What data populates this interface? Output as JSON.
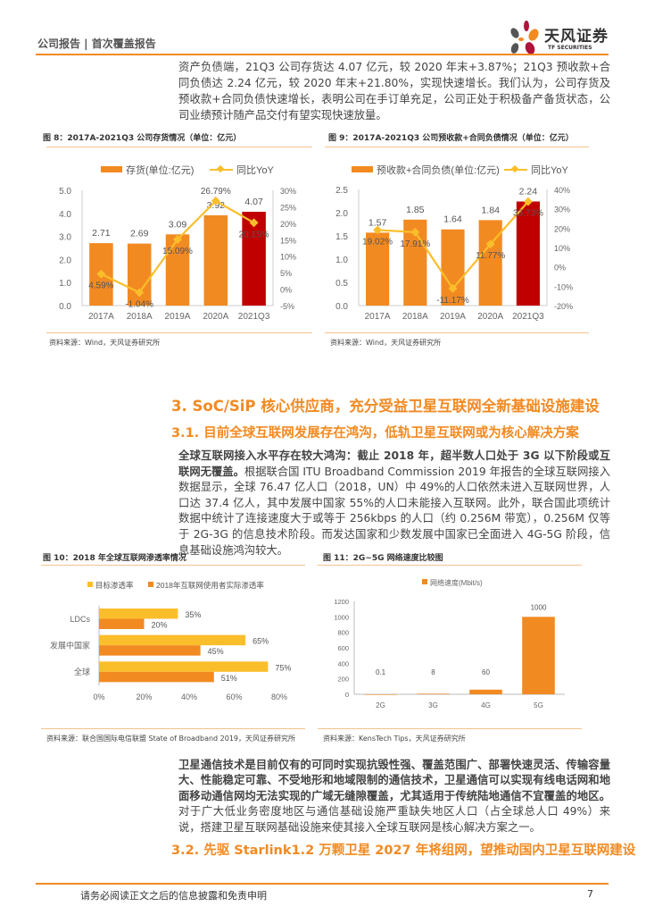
{
  "header": {
    "left": "公司报告 | 首次覆盖报告",
    "brand_cn": "天风证券",
    "brand_en": "TF SECURITIES"
  },
  "intro": "资产负债端，21Q3 公司存货达 4.07 亿元，较 2020 年末+3.87%；21Q3 预收款+合同负债达 2.24 亿元，较 2020 年末+21.80%，实现快速增长。我们认为，公司存货及预收款+合同负债快速增长，表明公司在手订单充足，公司正处于积极备产备货状态，公司业绩预计随产品交付有望实现快速放量。",
  "fig8": {
    "title": "图 8：2017A-2021Q3 公司存货情况（单位：亿元）",
    "source": "资料来源：Wind，天风证券研究所"
  },
  "fig9": {
    "title": "图 9：2017A-2021Q3 公司预收款+合同负债情况（单位：亿元）",
    "source": "资料来源：Wind，天风证券研究所"
  },
  "section3": "3. SoC/SiP 核心供应商，充分受益卫星互联网全新基础设施建设",
  "section31": "3.1. 目前全球互联网发展存在鸿沟，低轨卫星互联网或为核心解决方案",
  "para2_bold": "全球互联网接入水平存在较大鸿沟：截止 2018 年，超半数人口处于 3G 以下阶段或互联网无覆盖。",
  "para2": "根据联合国 ITU Broadband Commission 2019 年报告的全球互联网接入数据显示，全球 76.47 亿人口（2018，UN）中 49%的人口依然未进入互联网世界，人口达 37.4 亿人，其中发展中国家 55%的人口未能接入互联网。此外，联合国此项统计数据中统计了连接速度大于或等于 256kbps 的人口（约 0.256M 带宽），0.256M 仅等于 2G-3G 的信息技术阶段。而发达国家和少数发展中国家已全面进入 4G-5G 阶段，信息基础设施鸿沟较大。",
  "fig10": {
    "title": "图 10：2018 年全球互联网渗透率情况",
    "source": "资料来源：联合国国际电信联盟 State of Broadband 2019，天风证券研究所"
  },
  "fig11": {
    "title": "图 11：2G~5G 网络速度比较图",
    "source": "资料来源：KensTech Tips，天风证券研究所"
  },
  "para3_bold": "卫星通信技术是目前仅有的可同时实现抗毁性强、覆盖范围广、部署快速灵活、传输容量大、性能稳定可靠、不受地形和地域限制的通信技术，卫星通信可以实现有线电话网和地面移动通信网均无法实现的广域无缝隙覆盖，尤其适用于传统陆地通信不宜覆盖的地区。",
  "para3": "对于广大低业务密度地区与通信基础设施严重缺失地区人口（占全球总人口 49%）来说，搭建卫星互联网基础设施来使其接入全球互联网是核心解决方案之一。",
  "section32": "3.2. 先驱 Starlink1.2 万颗卫星 2027 年将组网，望推动国内卫星互联网建设",
  "footer": {
    "disclaimer": "请务必阅读正文之后的信息披露和免责申明",
    "page": "7"
  },
  "colors": {
    "accent": "#F28A22",
    "highlight": "#C00000",
    "line": "#FBBE2B"
  },
  "chart_data": [
    {
      "type": "bar+line",
      "categories": [
        "2017A",
        "2018A",
        "2019A",
        "2020A",
        "2021Q3"
      ],
      "series": [
        {
          "name": "存货(单位:亿元)",
          "values": [
            2.71,
            2.69,
            3.09,
            3.92,
            4.07
          ],
          "labels": [
            "2.71",
            "2.69",
            "3.09",
            "3.92",
            "4.07"
          ]
        },
        {
          "name": "同比YoY",
          "values": [
            4.59,
            -1.04,
            15.09,
            26.79,
            20.15
          ],
          "labels": [
            "4.59%",
            "-1.04%",
            "15.09%",
            "26.79%",
            "20.15%"
          ]
        }
      ],
      "ylim": [
        0,
        5
      ],
      "yticks": [
        "0.0",
        "1.0",
        "2.0",
        "3.0",
        "4.0",
        "5.0"
      ],
      "y2lim": [
        -5,
        30
      ],
      "y2ticks": [
        "-5%",
        "0%",
        "5%",
        "10%",
        "15%",
        "20%",
        "25%",
        "30%"
      ],
      "legend": "top"
    },
    {
      "type": "bar+line",
      "categories": [
        "2017A",
        "2018A",
        "2019A",
        "2020A",
        "2021Q3"
      ],
      "series": [
        {
          "name": "预收款+合同负债(单位:亿元)",
          "values": [
            1.57,
            1.85,
            1.64,
            1.84,
            2.24
          ],
          "labels": [
            "1.57",
            "1.85",
            "1.64",
            "1.84",
            "2.24"
          ]
        },
        {
          "name": "同比YoY",
          "values": [
            19.02,
            17.91,
            -11.17,
            11.77,
            33.73
          ],
          "labels": [
            "19.02%",
            "17.91%",
            "-11.17%",
            "11.77%",
            "33.73%"
          ]
        }
      ],
      "ylim": [
        0,
        2.5
      ],
      "yticks": [
        "0.0",
        "0.5",
        "1.0",
        "1.5",
        "2.0",
        "2.5"
      ],
      "y2lim": [
        -20,
        40
      ],
      "y2ticks": [
        "-20%",
        "-10%",
        "0%",
        "10%",
        "20%",
        "30%",
        "40%"
      ],
      "legend": "top"
    },
    {
      "type": "hbar",
      "categories": [
        "LDCs",
        "发展中国家",
        "全球"
      ],
      "series": [
        {
          "name": "目标渗透率",
          "values": [
            35,
            65,
            75
          ],
          "labels": [
            "35%",
            "65%",
            "75%"
          ]
        },
        {
          "name": "2018年互联网使用者实际渗透率",
          "values": [
            20,
            45,
            51
          ],
          "labels": [
            "20%",
            "45%",
            "51%"
          ]
        }
      ],
      "xlim": [
        0,
        80
      ],
      "xticks": [
        "0%",
        "20%",
        "40%",
        "60%",
        "80%"
      ],
      "legend": "top"
    },
    {
      "type": "bar",
      "categories": [
        "2G",
        "3G",
        "4G",
        "5G"
      ],
      "series": [
        {
          "name": "网络速度(Mbit/s)",
          "values": [
            0.1,
            8,
            60,
            1000
          ],
          "labels": [
            "0.1",
            "8",
            "60",
            "1000"
          ]
        }
      ],
      "ylim": [
        0,
        1200
      ],
      "yticks": [
        "0",
        "200",
        "400",
        "600",
        "800",
        "1000",
        "1200"
      ],
      "legend": "top"
    }
  ]
}
